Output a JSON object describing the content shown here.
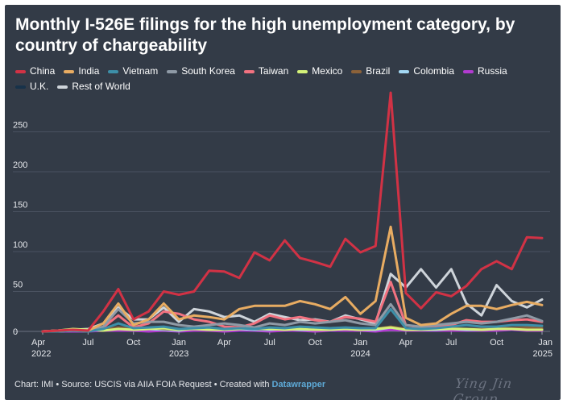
{
  "title": "Monthly I-526E filings for the high unemployment category, by country of chargeability",
  "footer": {
    "text": "Chart: IMI • Source: USCIS via AIIA FOIA Request • Created with ",
    "tool": "Datawrapper"
  },
  "watermark": "Ying Jin Group",
  "chart_data": {
    "type": "line",
    "title": "Monthly I-526E filings for the high unemployment category, by country of chargeability",
    "xlabel": "",
    "ylabel": "",
    "ylim": [
      0,
      300
    ],
    "grid": true,
    "legend_position": "top",
    "x_start": "2022-04",
    "x_end": "2025-01",
    "x_ticks": [
      {
        "index": 0,
        "line1": "Apr",
        "line2": "2022"
      },
      {
        "index": 3,
        "line1": "Jul",
        "line2": ""
      },
      {
        "index": 6,
        "line1": "Oct",
        "line2": ""
      },
      {
        "index": 9,
        "line1": "Jan",
        "line2": "2023"
      },
      {
        "index": 12,
        "line1": "Apr",
        "line2": ""
      },
      {
        "index": 15,
        "line1": "Jul",
        "line2": ""
      },
      {
        "index": 18,
        "line1": "Oct",
        "line2": ""
      },
      {
        "index": 21,
        "line1": "Jan",
        "line2": "2024"
      },
      {
        "index": 24,
        "line1": "Apr",
        "line2": ""
      },
      {
        "index": 27,
        "line1": "Jul",
        "line2": ""
      },
      {
        "index": 30,
        "line1": "Oct",
        "line2": ""
      },
      {
        "index": 33,
        "line1": "Jan",
        "line2": "2025"
      }
    ],
    "y_ticks": [
      0,
      50,
      100,
      150,
      200,
      250
    ],
    "series": [
      {
        "name": "Rest of World",
        "color": "#ced4da",
        "values": [
          0,
          1,
          2,
          3,
          10,
          30,
          15,
          15,
          30,
          12,
          28,
          25,
          18,
          20,
          12,
          22,
          18,
          14,
          15,
          12,
          20,
          15,
          10,
          72,
          55,
          78,
          55,
          78,
          35,
          20,
          58,
          38,
          30,
          40
        ]
      },
      {
        "name": "U.K.",
        "color": "#17324a",
        "values": [
          0,
          0,
          1,
          0,
          1,
          2,
          1,
          1,
          1,
          0,
          1,
          1,
          1,
          0,
          1,
          1,
          0,
          1,
          1,
          0,
          1,
          1,
          1,
          2,
          1,
          1,
          1,
          1,
          1,
          1,
          1,
          1,
          1,
          1
        ]
      },
      {
        "name": "Russia",
        "color": "#b23bd1",
        "values": [
          0,
          0,
          0,
          0,
          1,
          1,
          1,
          0,
          1,
          0,
          1,
          1,
          0,
          1,
          1,
          0,
          1,
          1,
          0,
          1,
          1,
          1,
          0,
          2,
          1,
          1,
          1,
          1,
          1,
          1,
          1,
          2,
          1,
          1
        ]
      },
      {
        "name": "Colombia",
        "color": "#a3d8f4",
        "values": [
          0,
          0,
          1,
          1,
          2,
          4,
          2,
          3,
          2,
          1,
          4,
          3,
          2,
          3,
          2,
          2,
          3,
          2,
          2,
          2,
          3,
          2,
          2,
          5,
          2,
          2,
          2,
          3,
          2,
          2,
          3,
          3,
          4,
          3
        ]
      },
      {
        "name": "Brazil",
        "color": "#8c6239",
        "values": [
          0,
          1,
          2,
          1,
          2,
          5,
          3,
          4,
          3,
          2,
          5,
          4,
          3,
          4,
          3,
          3,
          4,
          3,
          3,
          3,
          4,
          3,
          3,
          6,
          3,
          3,
          3,
          4,
          3,
          3,
          4,
          4,
          5,
          4
        ]
      },
      {
        "name": "Mexico",
        "color": "#d4f279",
        "values": [
          0,
          1,
          3,
          2,
          1,
          3,
          2,
          3,
          4,
          2,
          3,
          2,
          2,
          3,
          4,
          3,
          2,
          3,
          2,
          2,
          3,
          2,
          3,
          5,
          2,
          2,
          3,
          3,
          3,
          2,
          3,
          3,
          2,
          2
        ]
      },
      {
        "name": "Taiwan",
        "color": "#f27280",
        "values": [
          0,
          1,
          2,
          1,
          5,
          20,
          5,
          10,
          25,
          22,
          15,
          12,
          6,
          5,
          10,
          20,
          15,
          18,
          14,
          12,
          18,
          16,
          12,
          62,
          8,
          5,
          6,
          8,
          14,
          12,
          12,
          14,
          15,
          12
        ]
      },
      {
        "name": "South Korea",
        "color": "#8f9aa6",
        "values": [
          0,
          1,
          1,
          0,
          6,
          28,
          10,
          12,
          12,
          8,
          6,
          8,
          10,
          8,
          5,
          10,
          8,
          12,
          10,
          12,
          14,
          10,
          8,
          34,
          8,
          6,
          8,
          10,
          12,
          10,
          12,
          16,
          20,
          13
        ]
      },
      {
        "name": "Vietnam",
        "color": "#3d8fa8",
        "values": [
          0,
          0,
          1,
          0,
          3,
          10,
          4,
          5,
          6,
          3,
          4,
          5,
          3,
          4,
          3,
          5,
          4,
          6,
          5,
          4,
          5,
          4,
          4,
          28,
          4,
          3,
          4,
          6,
          8,
          6,
          6,
          8,
          8,
          7
        ]
      },
      {
        "name": "India",
        "color": "#e8ac62",
        "values": [
          0,
          1,
          2,
          1,
          10,
          35,
          8,
          15,
          35,
          15,
          20,
          18,
          15,
          28,
          32,
          32,
          32,
          38,
          34,
          28,
          43,
          22,
          38,
          131,
          17,
          8,
          10,
          22,
          32,
          32,
          28,
          33,
          37,
          33
        ]
      },
      {
        "name": "China",
        "color": "#d13245",
        "values": [
          0,
          1,
          2,
          1,
          25,
          53,
          15,
          25,
          50,
          46,
          50,
          76,
          75,
          67,
          99,
          89,
          114,
          92,
          87,
          81,
          116,
          99,
          107,
          299,
          48,
          29,
          49,
          44,
          57,
          78,
          88,
          78,
          118,
          117
        ]
      }
    ]
  }
}
